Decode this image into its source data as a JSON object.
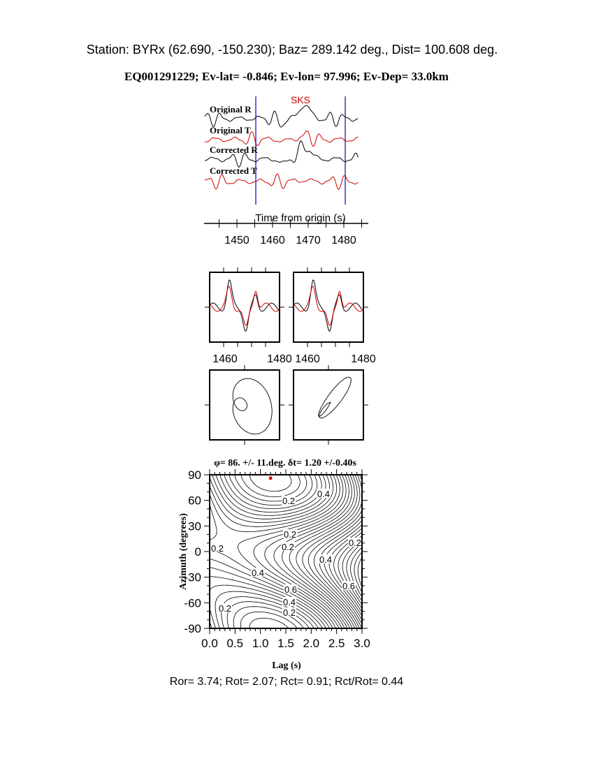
{
  "header": {
    "station_line": "Station: BYRx (62.690, -150.230); Baz=  289.142 deg., Dist=  100.608 deg.",
    "event_line": "EQ001291229; Ev-lat=  -0.846; Ev-lon=  97.996; Ev-Dep= 33.0km"
  },
  "footer": {
    "ratios": "Ror= 3.74; Rot= 2.07; Rct= 0.91; Rct/Rot= 0.44"
  },
  "colors": {
    "radial": "#000000",
    "transverse": "#d00000",
    "window": "#0000cc",
    "best_point": "#e00000"
  },
  "chart_data": [
    {
      "type": "line",
      "panel": "seismograms",
      "phase_label": "SKS",
      "trace_labels": [
        "Original R",
        "Original T",
        "Corrected R",
        "Corrected T"
      ],
      "xlabel": "Time from origin (s)",
      "xticks": [
        1450,
        1460,
        1470,
        1480
      ],
      "xlim": [
        1441,
        1487
      ],
      "window_markers": [
        1455.3,
        1480.4
      ]
    },
    {
      "type": "line",
      "panel": "window-waveforms",
      "xticks_left": [
        "1460",
        "1480"
      ],
      "xticks_right": [
        "1460",
        "1480"
      ]
    },
    {
      "type": "scatter",
      "panel": "particle-motion"
    },
    {
      "type": "heatmap",
      "panel": "energy-contours",
      "title": "φ= 86. +/- 11.deg. δt= 1.20 +/-0.40s",
      "xlabel": "Lag (s)",
      "ylabel": "Azimuth (degrees)",
      "xlim": [
        0,
        3
      ],
      "ylim": [
        -90,
        90
      ],
      "xticks": [
        "0.0",
        "0.5",
        "1.0",
        "1.5",
        "2.0",
        "2.5",
        "3.0"
      ],
      "yticks": [
        "90",
        "60",
        "30",
        "0",
        "-30",
        "-60",
        "-90"
      ],
      "best": {
        "lag": 1.2,
        "azimuth": 86
      },
      "contour_labels": [
        "0.2",
        "0.4",
        "0.2",
        "0.2",
        "0.2",
        "0.2",
        "0.4",
        "0.6",
        "0.4",
        "0.6",
        "0.4",
        "0.2",
        "0.2"
      ]
    }
  ]
}
